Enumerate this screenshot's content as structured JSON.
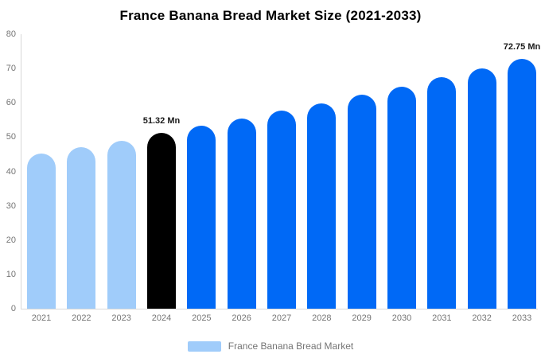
{
  "title": "France Banana Bread Market Size (2021-2033)",
  "legend": {
    "label": "France Banana Bread Market",
    "swatch_color": "#a0ccfa"
  },
  "colors": {
    "historical_bar": "#a0ccfa",
    "base_year_bar": "#000000",
    "forecast_bar": "#0069f6",
    "axis_line": "#d8d8d8",
    "tick_text": "#757575",
    "value_label_text": "#1a1a1a",
    "title_text": "#000000",
    "background": "#ffffff"
  },
  "chart_data": {
    "type": "bar",
    "title": "France Banana Bread Market Size (2021-2033)",
    "categories": [
      "2021",
      "2022",
      "2023",
      "2024",
      "2025",
      "2026",
      "2027",
      "2028",
      "2029",
      "2030",
      "2031",
      "2032",
      "2033"
    ],
    "values": [
      45.2,
      47.1,
      49.0,
      51.32,
      53.4,
      55.5,
      57.7,
      59.9,
      62.3,
      64.8,
      67.4,
      70.1,
      72.75
    ],
    "bar_roles": [
      "historical",
      "historical",
      "historical",
      "base_year",
      "forecast",
      "forecast",
      "forecast",
      "forecast",
      "forecast",
      "forecast",
      "forecast",
      "forecast",
      "forecast"
    ],
    "annotations": [
      {
        "category": "2024",
        "text": "51.32 Mn"
      },
      {
        "category": "2033",
        "text": "72.75 Mn"
      }
    ],
    "unit": "Mn",
    "xlabel": "",
    "ylabel": "",
    "ylim": [
      0,
      80
    ],
    "yticks": [
      0,
      10,
      20,
      30,
      40,
      50,
      60,
      70,
      80
    ],
    "grid": false,
    "legend_entries": [
      "France Banana Bread Market"
    ],
    "legend_position": "bottom"
  }
}
